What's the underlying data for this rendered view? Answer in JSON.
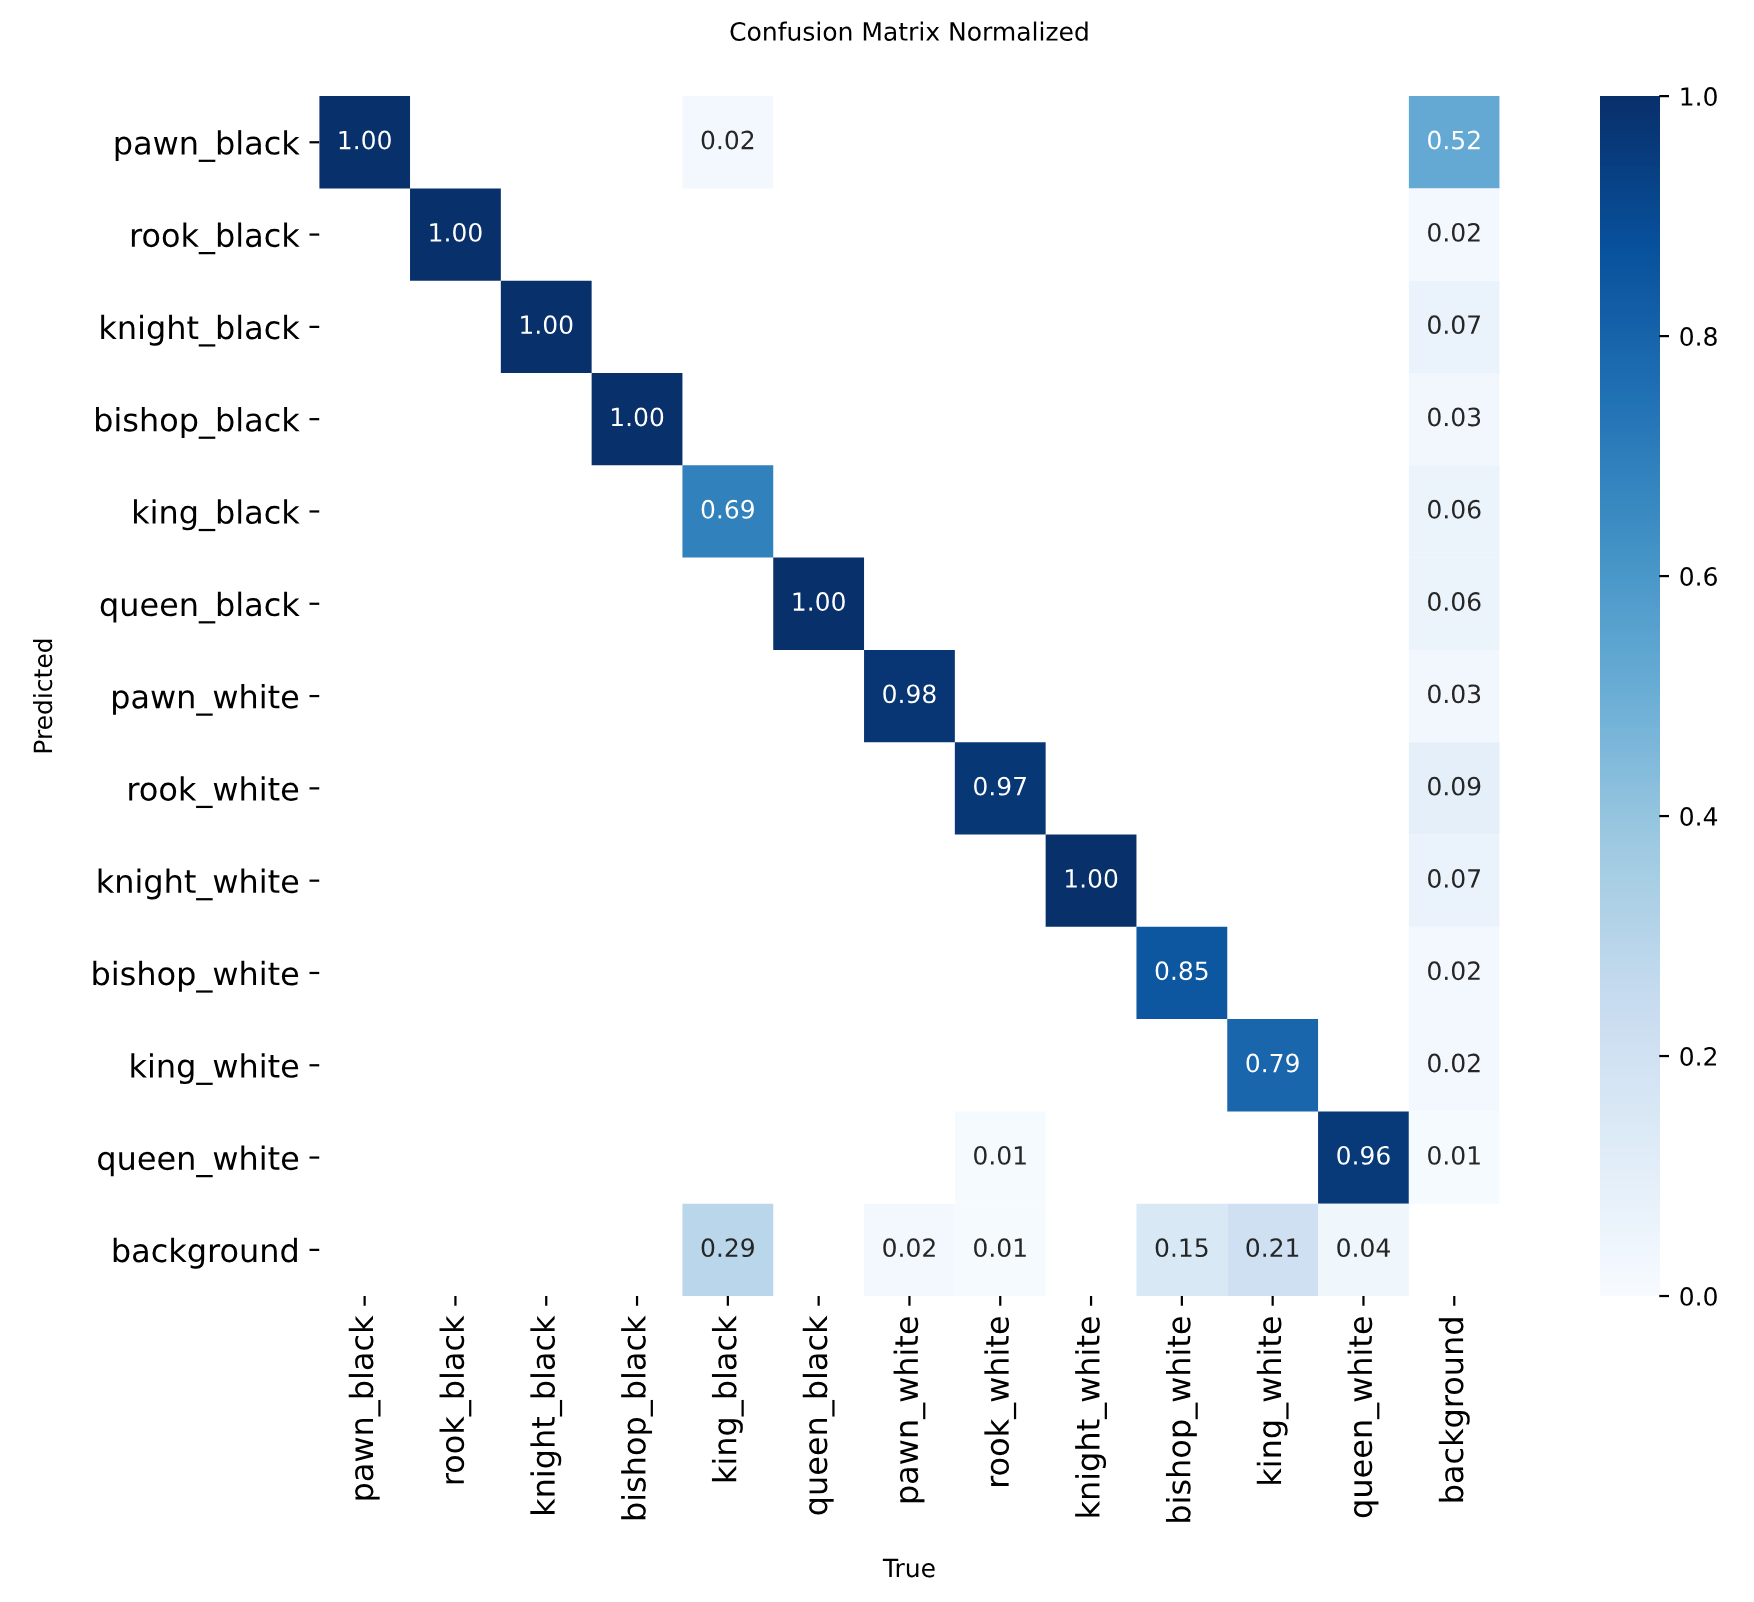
{
  "chart_data": {
    "type": "heatmap",
    "title": "Confusion Matrix Normalized",
    "xlabel": "True",
    "ylabel": "Predicted",
    "categories": [
      "pawn_black",
      "rook_black",
      "knight_black",
      "bishop_black",
      "king_black",
      "queen_black",
      "pawn_white",
      "rook_white",
      "knight_white",
      "bishop_white",
      "king_white",
      "queen_white",
      "background"
    ],
    "y_categories": [
      "pawn_black",
      "rook_black",
      "knight_black",
      "bishop_black",
      "king_black",
      "queen_black",
      "pawn_white",
      "rook_white",
      "knight_white",
      "bishop_white",
      "king_white",
      "queen_white",
      "background"
    ],
    "cells": [
      [
        1.0,
        null,
        null,
        null,
        0.02,
        null,
        null,
        null,
        null,
        null,
        null,
        null,
        0.52
      ],
      [
        null,
        1.0,
        null,
        null,
        null,
        null,
        null,
        null,
        null,
        null,
        null,
        null,
        0.02
      ],
      [
        null,
        null,
        1.0,
        null,
        null,
        null,
        null,
        null,
        null,
        null,
        null,
        null,
        0.07
      ],
      [
        null,
        null,
        null,
        1.0,
        null,
        null,
        null,
        null,
        null,
        null,
        null,
        null,
        0.03
      ],
      [
        null,
        null,
        null,
        null,
        0.69,
        null,
        null,
        null,
        null,
        null,
        null,
        null,
        0.06
      ],
      [
        null,
        null,
        null,
        null,
        null,
        1.0,
        null,
        null,
        null,
        null,
        null,
        null,
        0.06
      ],
      [
        null,
        null,
        null,
        null,
        null,
        null,
        0.98,
        null,
        null,
        null,
        null,
        null,
        0.03
      ],
      [
        null,
        null,
        null,
        null,
        null,
        null,
        null,
        0.97,
        null,
        null,
        null,
        null,
        0.09
      ],
      [
        null,
        null,
        null,
        null,
        null,
        null,
        null,
        null,
        1.0,
        null,
        null,
        null,
        0.07
      ],
      [
        null,
        null,
        null,
        null,
        null,
        null,
        null,
        null,
        null,
        0.85,
        null,
        null,
        0.02
      ],
      [
        null,
        null,
        null,
        null,
        null,
        null,
        null,
        null,
        null,
        null,
        0.79,
        null,
        0.02
      ],
      [
        null,
        null,
        null,
        null,
        null,
        null,
        null,
        0.01,
        null,
        null,
        null,
        0.96,
        0.01
      ],
      [
        null,
        null,
        null,
        null,
        0.29,
        null,
        0.02,
        0.01,
        null,
        0.15,
        0.21,
        0.04,
        null
      ]
    ],
    "cell_labels": [
      [
        "1.00",
        null,
        null,
        null,
        "0.02",
        null,
        null,
        null,
        null,
        null,
        null,
        null,
        "0.52"
      ],
      [
        null,
        "1.00",
        null,
        null,
        null,
        null,
        null,
        null,
        null,
        null,
        null,
        null,
        "0.02"
      ],
      [
        null,
        null,
        "1.00",
        null,
        null,
        null,
        null,
        null,
        null,
        null,
        null,
        null,
        "0.07"
      ],
      [
        null,
        null,
        null,
        "1.00",
        null,
        null,
        null,
        null,
        null,
        null,
        null,
        null,
        "0.03"
      ],
      [
        null,
        null,
        null,
        null,
        "0.69",
        null,
        null,
        null,
        null,
        null,
        null,
        null,
        "0.06"
      ],
      [
        null,
        null,
        null,
        null,
        null,
        "1.00",
        null,
        null,
        null,
        null,
        null,
        null,
        "0.06"
      ],
      [
        null,
        null,
        null,
        null,
        null,
        null,
        "0.98",
        null,
        null,
        null,
        null,
        null,
        "0.03"
      ],
      [
        null,
        null,
        null,
        null,
        null,
        null,
        null,
        "0.97",
        null,
        null,
        null,
        null,
        "0.09"
      ],
      [
        null,
        null,
        null,
        null,
        null,
        null,
        null,
        null,
        "1.00",
        null,
        null,
        null,
        "0.07"
      ],
      [
        null,
        null,
        null,
        null,
        null,
        null,
        null,
        null,
        null,
        "0.85",
        null,
        null,
        "0.02"
      ],
      [
        null,
        null,
        null,
        null,
        null,
        null,
        null,
        null,
        null,
        null,
        "0.79",
        null,
        "0.02"
      ],
      [
        null,
        null,
        null,
        null,
        null,
        null,
        null,
        "0.01",
        null,
        null,
        null,
        "0.96",
        "0.01"
      ],
      [
        null,
        null,
        null,
        null,
        "0.29",
        null,
        "0.02",
        "0.01",
        null,
        "0.15",
        "0.21",
        "0.04",
        null
      ]
    ],
    "clim": [
      0,
      1
    ],
    "cticks": [
      {
        "value": 0,
        "label": "0.0"
      },
      {
        "value": 0.2,
        "label": "0.2"
      },
      {
        "value": 0.4,
        "label": "0.4"
      },
      {
        "value": 0.6,
        "label": "0.6"
      },
      {
        "value": 0.8,
        "label": "0.8"
      },
      {
        "value": 1,
        "label": "1.0"
      }
    ]
  }
}
